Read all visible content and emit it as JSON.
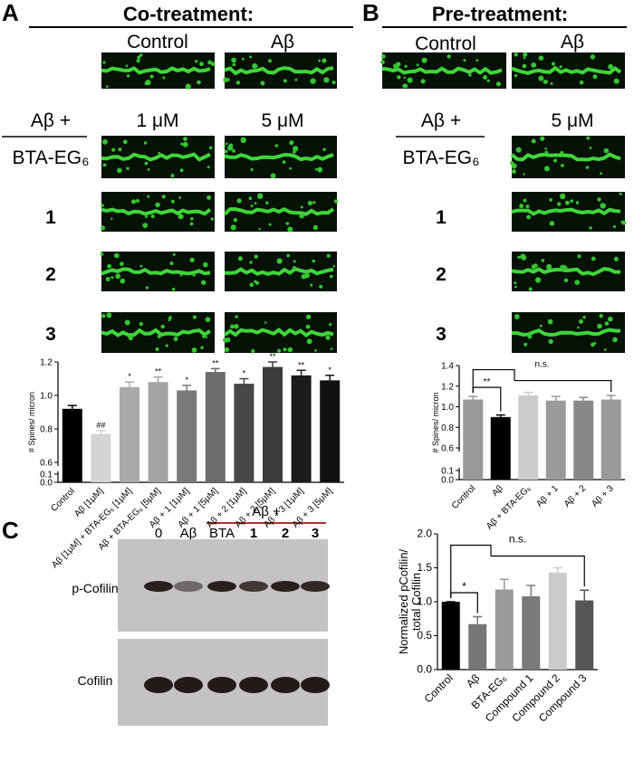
{
  "figure": {
    "panel_a": "A",
    "title_a": "Co-treatment:",
    "image_cols_a": [
      "Control",
      "Aβ"
    ],
    "abeta_plus_a": "Aβ +",
    "conc_cols_a": [
      "1 μM",
      "5 μM"
    ],
    "rows_a": [
      "BTA-EG₆",
      "1",
      "2",
      "3"
    ],
    "panel_b": "B",
    "title_b": "Pre-treatment:",
    "image_cols_b": [
      "Control",
      "Aβ"
    ],
    "abeta_plus_b": "Aβ +",
    "conc_b": "5 μM",
    "rows_b": [
      "BTA-EG₆",
      "1",
      "2",
      "3"
    ],
    "panel_c": "C",
    "abeta_plus_c": "Aβ +",
    "lanes": [
      "0",
      "Aβ",
      "BTA",
      "1",
      "2",
      "3"
    ],
    "blots": [
      "p-Cofilin",
      "Cofilin"
    ]
  },
  "chart_data": [
    {
      "type": "bar",
      "ylabel": "# Spines/ micron",
      "categories": [
        "Control",
        "Aβ [1μM]",
        "Aβ [1μM] + BTA-EG₆ [1μM]",
        "Aβ + BTA-EG₆ [5μM]",
        "Aβ + 1 [1μM]",
        "Aβ + 1 [5μM]",
        "Aβ + 2 [1μM]",
        "Aβ + 2 [5μM]",
        "Aβ + 3 [1μM]",
        "Aβ + 3 [5μM]"
      ],
      "values": [
        0.92,
        0.77,
        1.05,
        1.08,
        1.03,
        1.14,
        1.07,
        1.17,
        1.12,
        1.09
      ],
      "errors": [
        0.02,
        0.02,
        0.03,
        0.03,
        0.03,
        0.02,
        0.03,
        0.03,
        0.03,
        0.03
      ],
      "annotations": [
        null,
        "##",
        "*",
        "**",
        "*",
        "**",
        "*",
        "**",
        "**",
        "*"
      ],
      "colors": [
        "#000000",
        "#d4d4d4",
        "#a9a9a9",
        "#a3a3a3",
        "#7a7a7a",
        "#6c6c6c",
        "#474747",
        "#3b3b3b",
        "#1c1c1c",
        "#111111"
      ],
      "ylim": [
        0,
        1.2
      ],
      "ybreak": [
        0.1,
        0.6
      ],
      "yticks": [
        0.0,
        0.1,
        0.6,
        0.8,
        1.0,
        1.2
      ]
    },
    {
      "type": "bar",
      "ylabel": "# Spines/ micron",
      "categories": [
        "Control",
        "Aβ",
        "Aβ + BTA-EG₆",
        "Aβ + 1",
        "Aβ + 2",
        "Aβ + 3"
      ],
      "values": [
        1.07,
        0.9,
        1.11,
        1.06,
        1.06,
        1.07
      ],
      "errors": [
        0.03,
        0.02,
        0.03,
        0.04,
        0.03,
        0.04
      ],
      "colors": [
        "#999999",
        "#000000",
        "#cccccc",
        "#9a9a9a",
        "#888888",
        "#9a9a9a"
      ],
      "brackets": [
        {
          "label": "**",
          "from": 0,
          "to": 1
        },
        {
          "label": "n.s.",
          "from": 0,
          "to": 5
        }
      ],
      "ylim": [
        0,
        1.4
      ],
      "ybreak": [
        0.1,
        0.6
      ],
      "yticks": [
        0.0,
        0.1,
        0.6,
        0.8,
        1.0,
        1.2,
        1.4
      ]
    },
    {
      "type": "bar",
      "ylabel": "Normalized pCofilin/ total Cofilin",
      "categories": [
        "Control",
        "Aβ",
        "BTA-EG₆",
        "Compound 1",
        "Compound 2",
        "Compound 3"
      ],
      "values": [
        1.0,
        0.67,
        1.18,
        1.08,
        1.43,
        1.02
      ],
      "errors": [
        0.0,
        0.11,
        0.15,
        0.16,
        0.07,
        0.15
      ],
      "colors": [
        "#000000",
        "#777777",
        "#9a9a9a",
        "#7a7a7a",
        "#cccccc",
        "#555555"
      ],
      "brackets": [
        {
          "label": "*",
          "from": 0,
          "to": 1
        },
        {
          "label": "n.s.",
          "from": 0,
          "to": 5
        }
      ],
      "ylim": [
        0,
        2.0
      ],
      "yticks": [
        0.0,
        0.5,
        1.0,
        1.5,
        2.0
      ]
    }
  ]
}
